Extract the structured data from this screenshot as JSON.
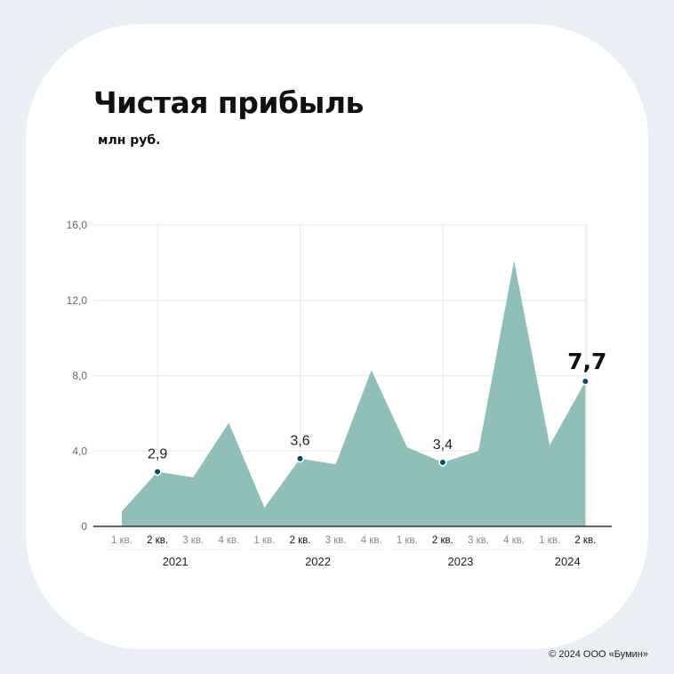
{
  "header": {
    "title": "Чистая прибыль",
    "unit": "млн руб."
  },
  "footer": {
    "copyright": "© 2024 ООО «Бумин»"
  },
  "colors": {
    "area": "#8fbfb8",
    "marker": "#0f4a56",
    "axis": "#333333",
    "grid": "#e8e8e8"
  },
  "chart_data": {
    "type": "area",
    "title": "Чистая прибыль",
    "ylabel": "млн руб.",
    "ylim": [
      0,
      16
    ],
    "yticks": [
      "0",
      "4,0",
      "8,0",
      "12,0",
      "16,0"
    ],
    "yticks_values": [
      0,
      4,
      8,
      12,
      16
    ],
    "grid": true,
    "categories": [
      "1 кв.",
      "2 кв.",
      "3 кв.",
      "4 кв.",
      "1 кв.",
      "2 кв.",
      "3 кв.",
      "4 кв.",
      "1 кв.",
      "2 кв.",
      "3 кв.",
      "4 кв.",
      "1 кв.",
      "2 кв."
    ],
    "category_emphasis": [
      false,
      true,
      false,
      false,
      false,
      true,
      false,
      false,
      false,
      true,
      false,
      false,
      false,
      true
    ],
    "groups": [
      {
        "label": "2021",
        "quarters": 4
      },
      {
        "label": "2022",
        "quarters": 4
      },
      {
        "label": "2023",
        "quarters": 4
      },
      {
        "label": "2024",
        "quarters": 2
      }
    ],
    "series": [
      {
        "values": [
          0.8,
          2.9,
          2.6,
          5.5,
          1.0,
          3.6,
          3.3,
          8.3,
          4.2,
          3.4,
          4.0,
          14.1,
          4.3,
          7.7
        ]
      }
    ],
    "data_labels": [
      {
        "index": 1,
        "text": "2,9",
        "emphasis": false
      },
      {
        "index": 5,
        "text": "3,6",
        "emphasis": false
      },
      {
        "index": 9,
        "text": "3,4",
        "emphasis": false
      },
      {
        "index": 13,
        "text": "7,7",
        "emphasis": true
      }
    ]
  }
}
